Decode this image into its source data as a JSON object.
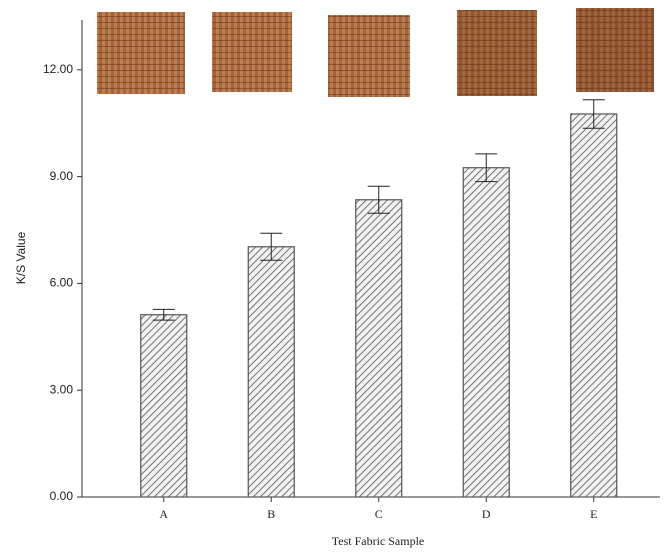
{
  "chart_data": {
    "type": "bar",
    "categories": [
      "A",
      "B",
      "C",
      "D",
      "E"
    ],
    "values": [
      5.12,
      7.03,
      8.35,
      9.25,
      10.76
    ],
    "errors": [
      0.15,
      0.38,
      0.38,
      0.39,
      0.4
    ],
    "color": "#555555",
    "ylim": [
      0,
      13.4
    ],
    "yticks": [
      {
        "value": 0,
        "label": "0.00"
      },
      {
        "value": 3,
        "label": "3.00"
      },
      {
        "value": 6,
        "label": "6.00"
      },
      {
        "value": 9,
        "label": "9.00"
      },
      {
        "value": 12,
        "label": "12.00"
      }
    ],
    "y_label": "K/S Value",
    "x_label": "Test Fabric Sample"
  }
}
